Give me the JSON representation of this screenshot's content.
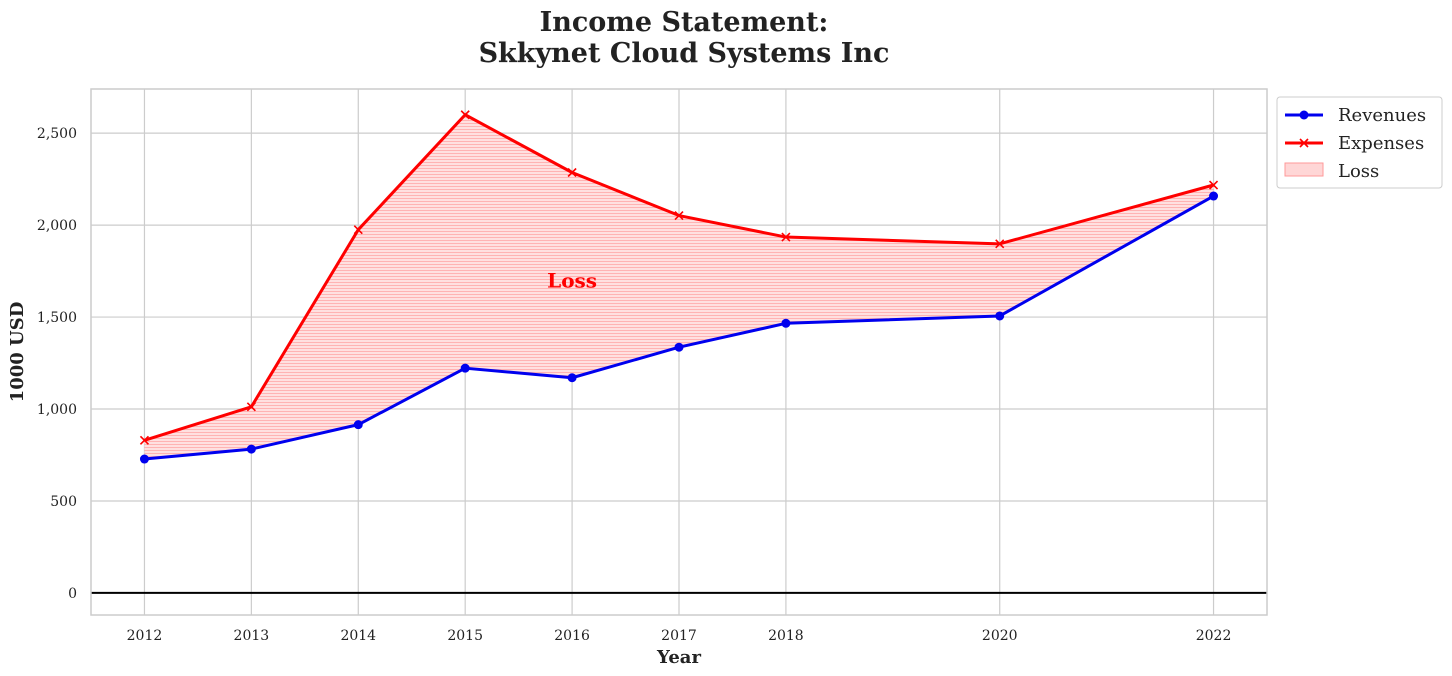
{
  "chart_data": {
    "type": "line",
    "title_line1": "Income Statement:",
    "title_line2": "Skkynet Cloud Systems Inc",
    "xlabel": "Year",
    "ylabel": "1000 USD",
    "x": [
      2012,
      2013,
      2014,
      2015,
      2016,
      2017,
      2018,
      2020,
      2022
    ],
    "x_ticks": [
      "2012",
      "2013",
      "2014",
      "2015",
      "2016",
      "2017",
      "2018",
      "2020",
      "2022"
    ],
    "y_ticks": [
      0,
      500,
      1000,
      1500,
      2000,
      2500
    ],
    "y_tick_labels": [
      "0",
      "500",
      "1,000",
      "1,500",
      "2,000",
      "2,500"
    ],
    "xlim": [
      2011.5,
      2022.5
    ],
    "ylim": [
      -120,
      2740
    ],
    "grid": true,
    "legend_position": "outside-top-right",
    "series": [
      {
        "name": "Revenues",
        "color": "#0000ee",
        "marker": "circle",
        "values": [
          728,
          782,
          915,
          1222,
          1170,
          1336,
          1466,
          1506,
          2158
        ]
      },
      {
        "name": "Expenses",
        "color": "#ff0000",
        "marker": "x",
        "values": [
          830,
          1012,
          1975,
          2600,
          2286,
          2052,
          1935,
          1898,
          2218
        ]
      }
    ],
    "fill": {
      "name": "Loss",
      "color": "#ff9999",
      "between": [
        "Revenues",
        "Expenses"
      ]
    },
    "annotation": {
      "text": "Loss",
      "color": "#ff0000",
      "x": 2016,
      "y": 1700
    }
  }
}
